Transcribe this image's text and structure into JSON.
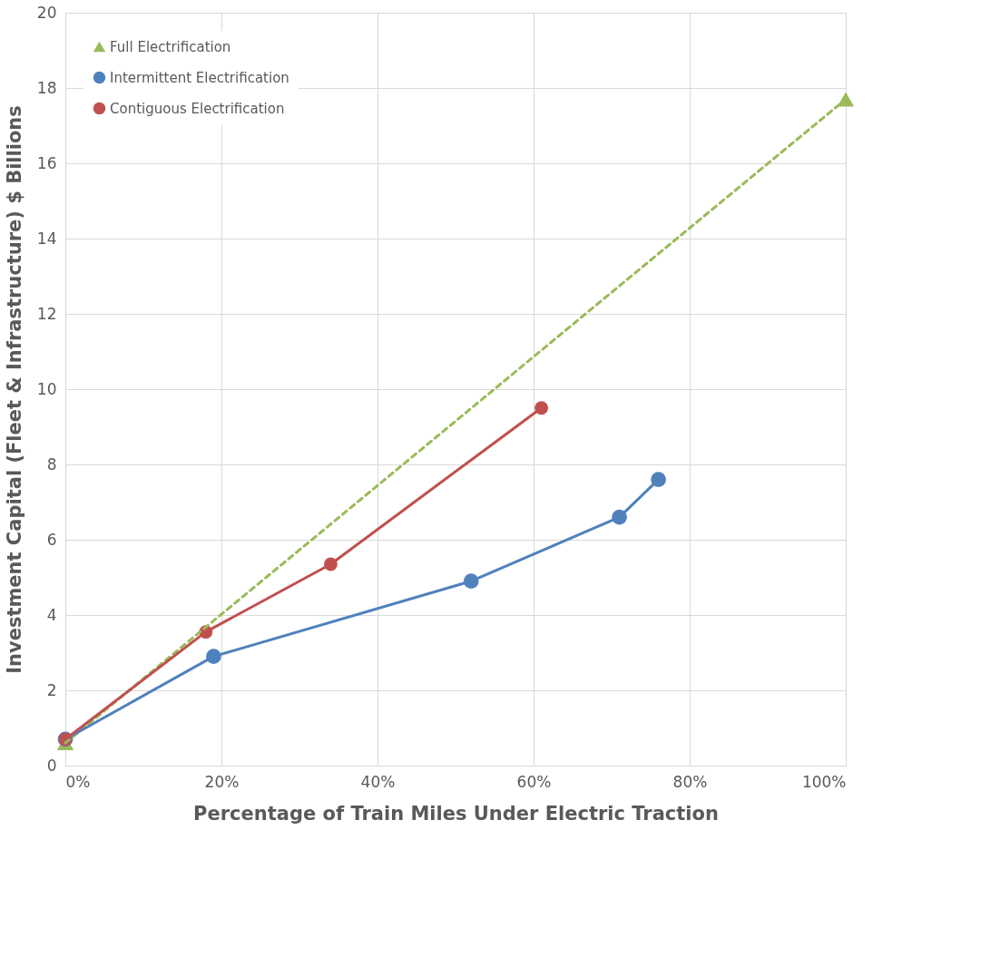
{
  "chart_data": {
    "type": "line",
    "xlabel": "Percentage of Train Miles Under Electric Traction",
    "ylabel": "Investment Capital (Fleet & Infrastructure) $ Billions",
    "xlim": [
      0,
      100
    ],
    "ylim": [
      0,
      20
    ],
    "xticks": [
      {
        "value": 0,
        "label": "0%"
      },
      {
        "value": 20,
        "label": "20%"
      },
      {
        "value": 40,
        "label": "40%"
      },
      {
        "value": 60,
        "label": "60%"
      },
      {
        "value": 80,
        "label": "80%"
      },
      {
        "value": 100,
        "label": "100%"
      }
    ],
    "yticks": [
      0,
      2,
      4,
      6,
      8,
      10,
      12,
      14,
      16,
      18,
      20
    ],
    "grid": true,
    "legend": "top left",
    "series": [
      {
        "name": "Full Electrification",
        "color": "#9bbb59",
        "line_style": "dashed",
        "marker": "triangle",
        "x": [
          0,
          100
        ],
        "values": [
          0.6,
          17.7
        ]
      },
      {
        "name": "Intermittent Electrification",
        "color": "#4f81bd",
        "line_style": "solid",
        "marker": "circle",
        "x": [
          0,
          19,
          52,
          71,
          76
        ],
        "values": [
          0.7,
          2.9,
          4.9,
          6.6,
          7.6
        ]
      },
      {
        "name": "Contiguous Electrification",
        "color": "#c0504d",
        "line_style": "solid",
        "marker": "circle",
        "x": [
          0,
          18,
          34,
          61
        ],
        "values": [
          0.7,
          3.55,
          5.35,
          9.5
        ]
      }
    ]
  }
}
